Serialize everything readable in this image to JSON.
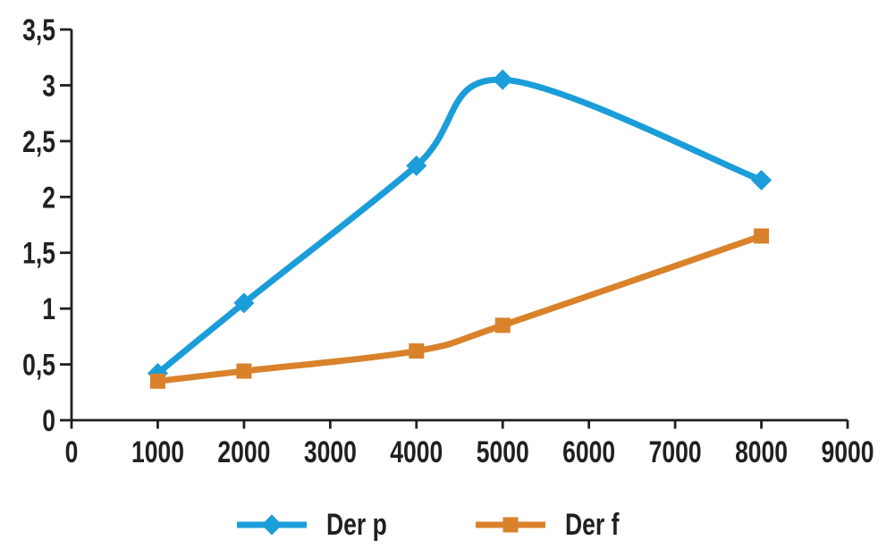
{
  "page": {
    "background": "#FFFFFF"
  },
  "chart_data": {
    "type": "line",
    "title": "",
    "xlabel": "",
    "ylabel": "",
    "xlim": [
      0,
      9000
    ],
    "ylim": [
      0,
      3.5
    ],
    "grid": false,
    "smooth": true,
    "legend_position": "bottom",
    "axis_color": "#231F20",
    "text_color": "#231F20",
    "line_width": 7,
    "x": [
      1000,
      2000,
      4000,
      5000,
      8000
    ],
    "series": [
      {
        "name": "Der p",
        "marker": "diamond",
        "color": "#1B9DD9",
        "values": [
          0.42,
          1.05,
          2.28,
          3.05,
          2.15
        ]
      },
      {
        "name": "Der f",
        "marker": "square",
        "color": "#D9822B",
        "values": [
          0.35,
          0.44,
          0.62,
          0.85,
          1.65
        ]
      }
    ],
    "x_tick_values": [
      0,
      1000,
      2000,
      3000,
      4000,
      5000,
      6000,
      7000,
      8000,
      9000
    ],
    "x_tick_labels": [
      "0",
      "1000",
      "2000",
      "3000",
      "4000",
      "5000",
      "6000",
      "7000",
      "8000",
      "9000"
    ],
    "y_tick_values": [
      0,
      0.5,
      1,
      1.5,
      2,
      2.5,
      3,
      3.5
    ],
    "y_tick_labels": [
      "0",
      "0,5",
      "1",
      "1,5",
      "2",
      "2,5",
      "3",
      "3,5"
    ]
  }
}
